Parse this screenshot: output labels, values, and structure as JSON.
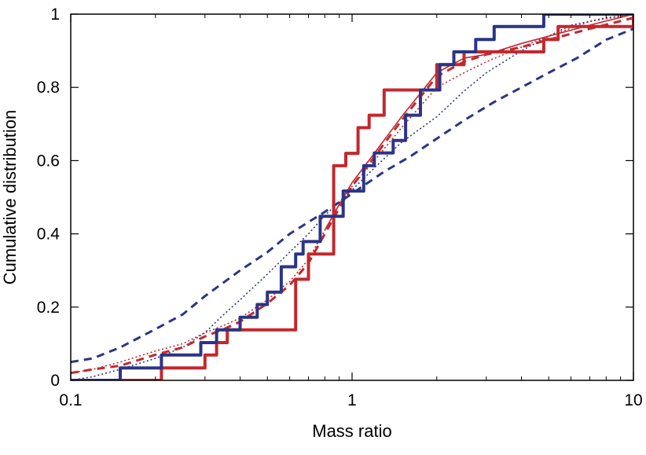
{
  "chart_data": {
    "type": "line",
    "title": "",
    "xlabel": "Mass ratio",
    "ylabel": "Cumulative distribution",
    "xscale": "log",
    "xlim": [
      0.1,
      10
    ],
    "ylim": [
      0,
      1
    ],
    "x_ticks": [
      {
        "value": 0.1,
        "label": "0.1"
      },
      {
        "value": 1,
        "label": "1"
      },
      {
        "value": 10,
        "label": "10"
      }
    ],
    "y_ticks": [
      {
        "value": 0,
        "label": "0"
      },
      {
        "value": 0.2,
        "label": "0.2"
      },
      {
        "value": 0.4,
        "label": "0.4"
      },
      {
        "value": 0.6,
        "label": "0.6"
      },
      {
        "value": 0.8,
        "label": "0.8"
      },
      {
        "value": 1,
        "label": "1"
      }
    ],
    "grid": false,
    "legend": null,
    "series": [
      {
        "name": "blue-dashed",
        "color": "#2b3585",
        "style": "dashed",
        "step": false,
        "x": [
          0.1,
          0.12,
          0.15,
          0.2,
          0.25,
          0.3,
          0.4,
          0.5,
          0.6,
          0.8,
          1.0,
          1.3,
          1.6,
          2.0,
          2.5,
          3.2,
          4.0,
          5.0,
          6.3,
          8.0,
          10
        ],
        "y": [
          0.05,
          0.06,
          0.09,
          0.14,
          0.18,
          0.23,
          0.3,
          0.35,
          0.4,
          0.46,
          0.51,
          0.57,
          0.61,
          0.66,
          0.71,
          0.76,
          0.8,
          0.84,
          0.88,
          0.93,
          0.96
        ]
      },
      {
        "name": "blue-dotted",
        "color": "#2b3585",
        "style": "dotted",
        "step": false,
        "x": [
          0.1,
          0.12,
          0.15,
          0.2,
          0.25,
          0.3,
          0.35,
          0.4,
          0.5,
          0.6,
          0.7,
          0.8,
          1.0,
          1.2,
          1.5,
          2.0,
          2.5,
          3.0,
          4.0,
          5.0,
          6.0,
          8.0,
          10
        ],
        "y": [
          0.0,
          0.01,
          0.03,
          0.06,
          0.09,
          0.13,
          0.18,
          0.22,
          0.29,
          0.35,
          0.4,
          0.45,
          0.52,
          0.58,
          0.65,
          0.72,
          0.79,
          0.84,
          0.9,
          0.94,
          0.97,
          0.99,
          1.0
        ]
      },
      {
        "name": "red-dotted",
        "color": "#c2282d",
        "style": "dotted",
        "step": false,
        "x": [
          0.1,
          0.12,
          0.15,
          0.2,
          0.25,
          0.3,
          0.35,
          0.4,
          0.5,
          0.6,
          0.7,
          0.8,
          0.9,
          1.0,
          1.2,
          1.5,
          2.0,
          2.5,
          3.0,
          4.0,
          5.0,
          7.0,
          10
        ],
        "y": [
          0.02,
          0.03,
          0.05,
          0.08,
          0.1,
          0.13,
          0.15,
          0.17,
          0.22,
          0.27,
          0.33,
          0.41,
          0.48,
          0.53,
          0.6,
          0.69,
          0.8,
          0.84,
          0.87,
          0.91,
          0.94,
          0.98,
          1.0
        ]
      },
      {
        "name": "red-dashed",
        "color": "#c2282d",
        "style": "dashed",
        "step": false,
        "x": [
          0.1,
          0.12,
          0.15,
          0.2,
          0.25,
          0.3,
          0.35,
          0.4,
          0.5,
          0.6,
          0.7,
          0.8,
          0.9,
          1.0,
          1.2,
          1.5,
          2.0,
          2.5,
          3.0,
          4.0,
          5.0,
          7.0,
          10
        ],
        "y": [
          0.02,
          0.03,
          0.04,
          0.07,
          0.09,
          0.12,
          0.14,
          0.16,
          0.21,
          0.26,
          0.32,
          0.4,
          0.47,
          0.53,
          0.61,
          0.71,
          0.83,
          0.87,
          0.89,
          0.91,
          0.93,
          0.96,
          0.99
        ]
      },
      {
        "name": "red-solid-thin",
        "color": "#c2282d",
        "style": "solid-thin",
        "step": false,
        "x": [
          0.8,
          0.9,
          1.0,
          1.2,
          1.5,
          2.0,
          2.5,
          3.0,
          4.0,
          5.0,
          7.0,
          10
        ],
        "y": [
          0.41,
          0.48,
          0.54,
          0.62,
          0.72,
          0.84,
          0.88,
          0.89,
          0.92,
          0.94,
          0.97,
          1.0
        ]
      },
      {
        "name": "red-solid-thick",
        "color": "#c2282d",
        "style": "solid",
        "step": true,
        "x": [
          0.1,
          0.19,
          0.21,
          0.27,
          0.3,
          0.33,
          0.36,
          0.45,
          0.63,
          0.7,
          0.77,
          0.86,
          0.95,
          1.05,
          1.15,
          1.3,
          1.6,
          2.0,
          2.5,
          3.2,
          4.8,
          5.4,
          7.0,
          8.5,
          10
        ],
        "y": [
          0.0,
          0.0,
          0.034,
          0.034,
          0.069,
          0.103,
          0.138,
          0.138,
          0.276,
          0.345,
          0.345,
          0.586,
          0.62,
          0.69,
          0.724,
          0.793,
          0.793,
          0.862,
          0.897,
          0.897,
          0.931,
          0.966,
          0.966,
          0.966,
          1.0
        ]
      },
      {
        "name": "blue-solid-thick",
        "color": "#2b3585",
        "style": "solid",
        "step": true,
        "x": [
          0.1,
          0.13,
          0.15,
          0.19,
          0.21,
          0.29,
          0.33,
          0.38,
          0.4,
          0.46,
          0.5,
          0.56,
          0.63,
          0.67,
          0.77,
          0.93,
          1.1,
          1.2,
          1.4,
          1.55,
          1.75,
          2.05,
          2.3,
          2.75,
          3.2,
          4.8,
          5.4,
          7.0,
          10
        ],
        "y": [
          0.0,
          0.0,
          0.034,
          0.034,
          0.069,
          0.103,
          0.138,
          0.138,
          0.172,
          0.207,
          0.241,
          0.31,
          0.345,
          0.379,
          0.448,
          0.517,
          0.586,
          0.621,
          0.655,
          0.724,
          0.793,
          0.862,
          0.897,
          0.931,
          0.966,
          1.0,
          1.0,
          1.0,
          1.0
        ]
      }
    ]
  }
}
